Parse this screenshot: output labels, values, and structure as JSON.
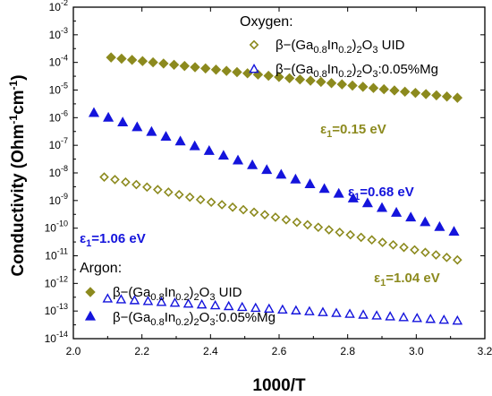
{
  "chart_data": {
    "type": "scatter",
    "title": "",
    "xlabel": "1000/T",
    "ylabel_parts": {
      "a": "Conductivity (Ohm",
      "b": "-1",
      "c": "cm",
      "d": "-1",
      "e": ")"
    },
    "xlim": [
      2.0,
      3.2
    ],
    "ylog": true,
    "ylim_exp": [
      -14,
      -2
    ],
    "x_ticks": [
      "2.0",
      "2.2",
      "2.4",
      "2.6",
      "2.8",
      "3.0",
      "3.2"
    ],
    "y_ticks": [
      {
        "base": "10",
        "exp": "-2"
      },
      {
        "base": "10",
        "exp": "-3"
      },
      {
        "base": "10",
        "exp": "-4"
      },
      {
        "base": "10",
        "exp": "-5"
      },
      {
        "base": "10",
        "exp": "-6"
      },
      {
        "base": "10",
        "exp": "-7"
      },
      {
        "base": "10",
        "exp": "-8"
      },
      {
        "base": "10",
        "exp": "-9"
      },
      {
        "base": "10",
        "exp": "-10"
      },
      {
        "base": "10",
        "exp": "-11"
      },
      {
        "base": "10",
        "exp": "-12"
      },
      {
        "base": "10",
        "exp": "-13"
      },
      {
        "base": "10",
        "exp": "-14"
      }
    ],
    "grid": false,
    "colors": {
      "uid": "#8c8a1e",
      "mg": "#1414dc"
    },
    "series": [
      {
        "key": "oxy_uid",
        "group": "Oxygen",
        "marker": "diamond-open",
        "x_start": 2.09,
        "x_end": 3.12,
        "n": 34,
        "log_start": -8.15,
        "log_end": -11.15
      },
      {
        "key": "oxy_mg",
        "group": "Oxygen",
        "marker": "triangle-open",
        "x_start": 2.1,
        "x_end": 3.12,
        "n": 27,
        "log_start": -12.55,
        "log_end": -13.35
      },
      {
        "key": "arg_uid",
        "group": "Argon",
        "marker": "diamond-filled",
        "x_start": 2.11,
        "x_end": 3.12,
        "n": 34,
        "log_start": -3.82,
        "log_end": -5.28
      },
      {
        "key": "arg_mg",
        "group": "Argon",
        "marker": "triangle-filled",
        "x_start": 2.06,
        "x_end": 3.11,
        "n": 26,
        "log_start": -5.82,
        "log_end": -10.12
      }
    ],
    "legend": {
      "placement": "top-right and bottom-left",
      "oxygen_header": "Oxygen:",
      "argon_header": "Argon:",
      "uid": {
        "t1": "β−(Ga",
        "s1": "0.8",
        "t2": "In",
        "s2": "0.2",
        "t3": ")",
        "s3": "2",
        "t4": "O",
        "s4": "3",
        "t5": " UID"
      },
      "mg": {
        "t1": "β−(Ga",
        "s1": "0.8",
        "t2": "In",
        "s2": "0.2",
        "t3": ")",
        "s3": "2",
        "t4": "O",
        "s4": "3",
        "t5": ":0.05%Mg"
      }
    },
    "annotations": [
      {
        "key": "a015",
        "sym": "ε",
        "sub": "1",
        "text": "=0.15 eV",
        "color": "uid"
      },
      {
        "key": "a068",
        "sym": "ε",
        "sub": "1",
        "text": "=0.68 eV",
        "color": "mg"
      },
      {
        "key": "a106",
        "sym": "ε",
        "sub": "1",
        "text": "=1.06 eV",
        "color": "mg"
      },
      {
        "key": "a104",
        "sym": "ε",
        "sub": "1",
        "text": "=1.04 eV",
        "color": "uid"
      }
    ]
  }
}
